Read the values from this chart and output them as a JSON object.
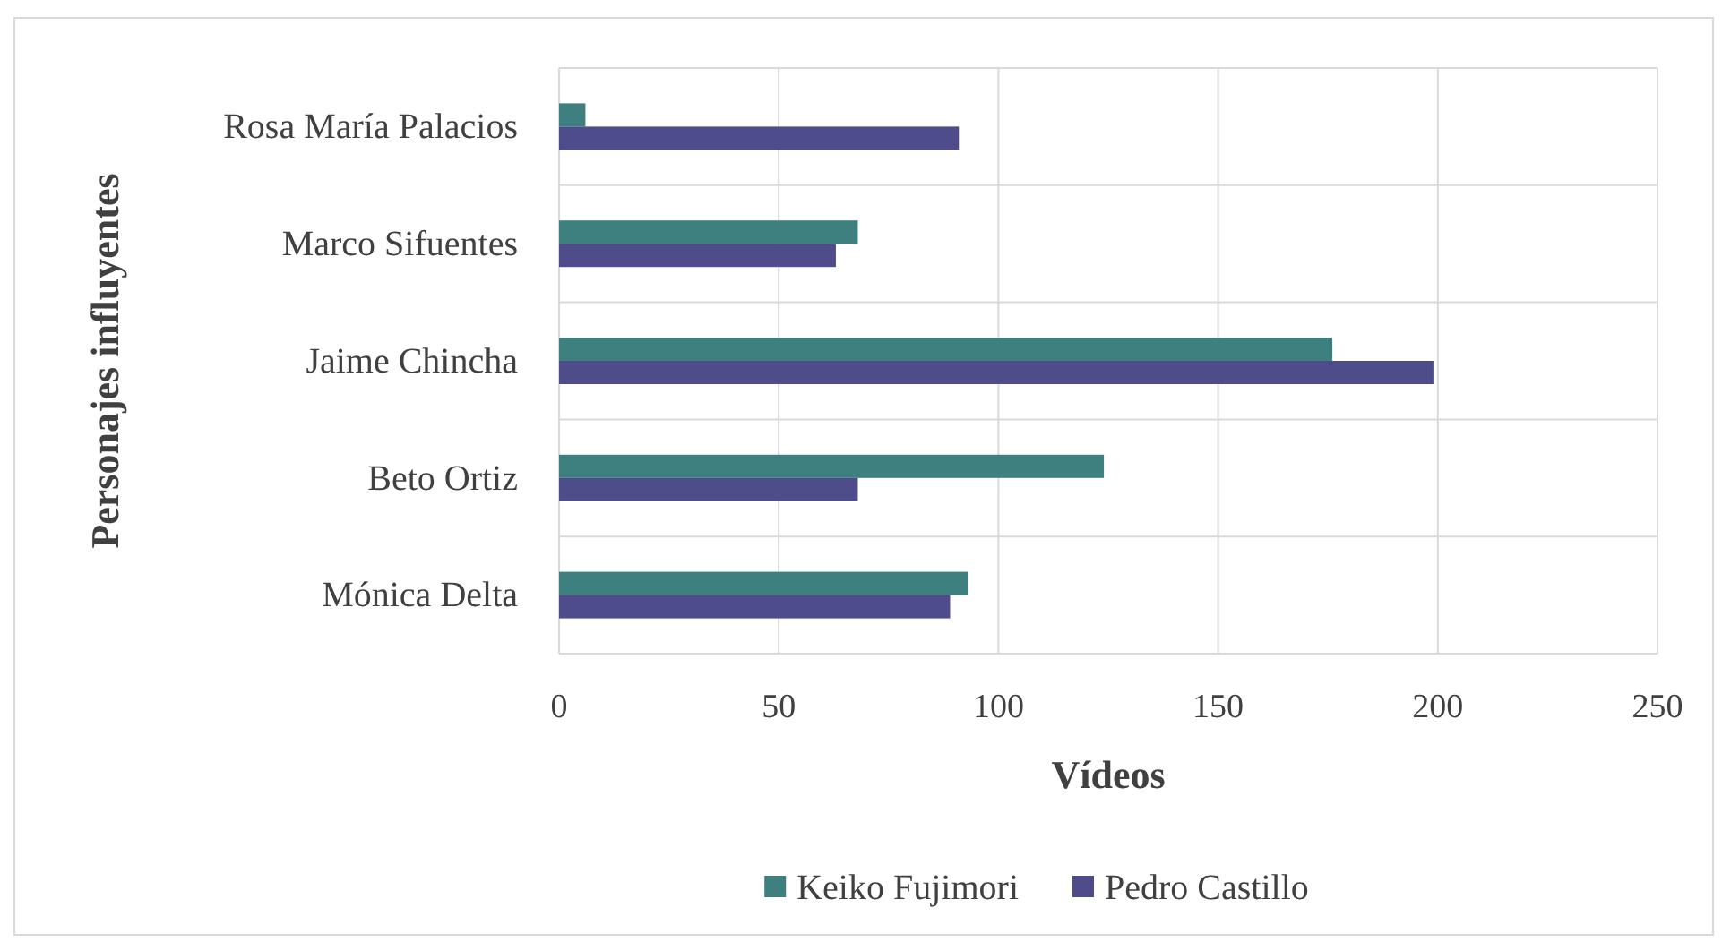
{
  "chart_data": {
    "type": "bar",
    "orientation": "horizontal",
    "xlabel": "Vídeos",
    "ylabel": "Personajes influyentes",
    "categories": [
      "Rosa María Palacios",
      "Marco Sifuentes",
      "Jaime Chincha",
      "Beto Ortiz",
      "Mónica Delta"
    ],
    "series": [
      {
        "name": "Keiko Fujimori",
        "color": "#3e7f7f",
        "values": [
          6,
          68,
          176,
          124,
          93
        ]
      },
      {
        "name": "Pedro Castillo",
        "color": "#4e4c8a",
        "values": [
          91,
          63,
          199,
          68,
          89
        ]
      }
    ],
    "xlim": [
      0,
      250
    ],
    "xticks": [
      0,
      50,
      100,
      150,
      200,
      250
    ],
    "grid": true,
    "legend": "bottom"
  }
}
